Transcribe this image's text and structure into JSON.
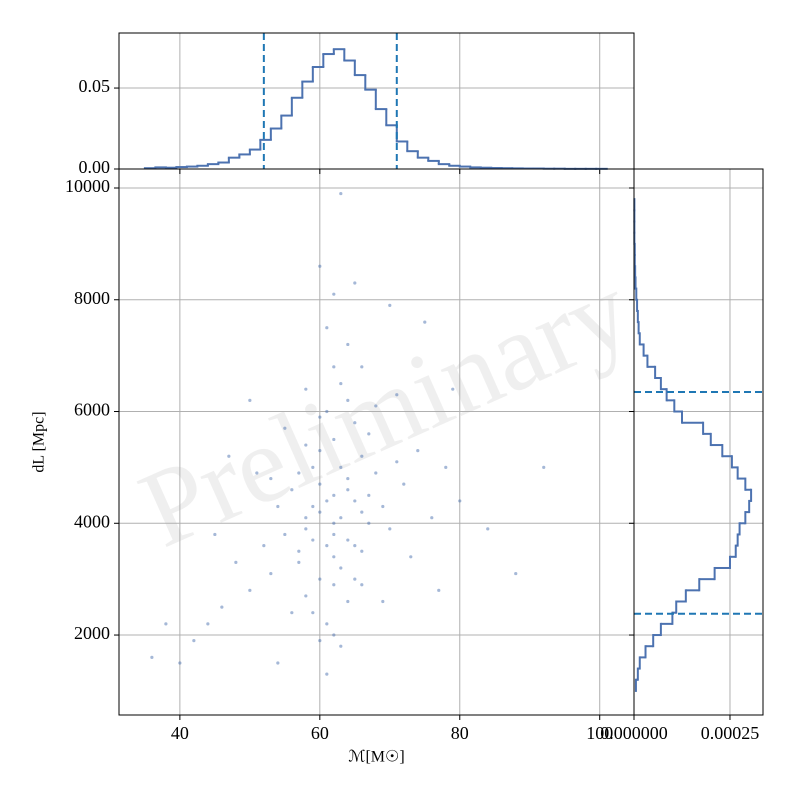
{
  "chart_data": [
    {
      "type": "scatter",
      "xlabel": "ℳ[M☉]",
      "ylabel": "dL [Mpc]",
      "watermark": "Preliminary",
      "color": "#4c72b0",
      "grid": true,
      "xlim": [
        31.3,
        104.9
      ],
      "xticks": [
        40,
        60,
        80,
        100
      ],
      "ylim": [
        569,
        10340
      ],
      "yticks": [
        2000,
        4000,
        6000,
        8000,
        10000
      ],
      "x": [
        62,
        60,
        64,
        58,
        66,
        61,
        63,
        59,
        65,
        57,
        67,
        62,
        60,
        64,
        56,
        68,
        61,
        63,
        55,
        69,
        62,
        58,
        66,
        60,
        64,
        53,
        71,
        62,
        59,
        65,
        57,
        67,
        61,
        63,
        54,
        70,
        62,
        60,
        64,
        52,
        72,
        58,
        66,
        61,
        63,
        50,
        74,
        62,
        59,
        65,
        56,
        68,
        60,
        64,
        48,
        76,
        62,
        58,
        66,
        61,
        63,
        46,
        78,
        55,
        69,
        60,
        64,
        57,
        67,
        62,
        59,
        65,
        53,
        71,
        58,
        66,
        44,
        80,
        51,
        73,
        62,
        60,
        45,
        79,
        42,
        84,
        38,
        92,
        36,
        88,
        40,
        75,
        54,
        70,
        63,
        47,
        77,
        61,
        65,
        50
      ],
      "y": [
        4500,
        4200,
        4800,
        3900,
        5200,
        3600,
        4100,
        5000,
        4400,
        3300,
        5600,
        2900,
        5300,
        3700,
        4600,
        4900,
        6000,
        3200,
        3800,
        4300,
        5500,
        2700,
        3500,
        4700,
        6200,
        3100,
        5100,
        4000,
        2400,
        5800,
        4900,
        4000,
        2200,
        6500,
        4300,
        3900,
        3400,
        5900,
        2600,
        3600,
        4700,
        5400,
        2900,
        4400,
        5000,
        2800,
        5300,
        6800,
        3700,
        3000,
        2400,
        6100,
        1900,
        7200,
        3300,
        4100,
        2000,
        6400,
        6800,
        7500,
        1800,
        2500,
        5000,
        5700,
        2600,
        3000,
        4600,
        3500,
        4500,
        3800,
        4300,
        3600,
        4800,
        6300,
        4100,
        4200,
        2200,
        4400,
        4900,
        3400,
        8100,
        8600,
        3800,
        6400,
        1900,
        3900,
        2200,
        5000,
        1600,
        3100,
        1500,
        7600,
        1500,
        7900,
        9900,
        5200,
        2800,
        1300,
        8300,
        6200
      ]
    },
    {
      "type": "histogram",
      "orientation": "vertical",
      "color": "#4c72b0",
      "line_color": "#1f77b4",
      "grid": true,
      "xtick_labels": false,
      "xlim": [
        31.3,
        104.9
      ],
      "xticks": [
        40,
        60,
        80,
        100
      ],
      "ylim": [
        0,
        0.084
      ],
      "yticks": [
        {
          "value": 0,
          "label": "0.00"
        },
        {
          "value": 0.05,
          "label": "0.05"
        }
      ],
      "bins": [
        35,
        36.5,
        38,
        39.5,
        41,
        42.5,
        44,
        45.5,
        47,
        48.5,
        50,
        51.5,
        53,
        54.5,
        56,
        57.5,
        59,
        60.5,
        62,
        63.5,
        65,
        66.5,
        68,
        69.5,
        71,
        72.5,
        74,
        75.5,
        77,
        78.5,
        80,
        81.5,
        83,
        84.5,
        86,
        87.5,
        89,
        90.5,
        92,
        93.5,
        95,
        96.5,
        98,
        99.5,
        101
      ],
      "values": [
        0.0005,
        0.001,
        0.0008,
        0.0012,
        0.0015,
        0.002,
        0.003,
        0.004,
        0.007,
        0.009,
        0.012,
        0.018,
        0.025,
        0.033,
        0.044,
        0.054,
        0.063,
        0.071,
        0.074,
        0.067,
        0.058,
        0.049,
        0.037,
        0.027,
        0.017,
        0.011,
        0.007,
        0.005,
        0.003,
        0.002,
        0.0015,
        0.001,
        0.0008,
        0.0006,
        0.0005,
        0.0004,
        0.0003,
        0.0003,
        0.0002,
        0.0002,
        0.0001,
        0.0001,
        0.0001,
        0.0001
      ],
      "lines": [
        52,
        71
      ]
    },
    {
      "type": "histogram",
      "orientation": "horizontal",
      "color": "#4c72b0",
      "line_color": "#1f77b4",
      "grid": true,
      "ytick_labels": false,
      "xlim": [
        0,
        0.000336
      ],
      "xticks": [
        {
          "value": 0,
          "label": "0.000000"
        },
        0.00025
      ],
      "ylim": [
        569,
        10340
      ],
      "yticks": [
        2000,
        4000,
        6000,
        8000,
        10000
      ],
      "bins": [
        1000,
        1200,
        1400,
        1600,
        1800,
        2000,
        2200,
        2400,
        2600,
        2800,
        3000,
        3200,
        3400,
        3600,
        3800,
        4000,
        4200,
        4400,
        4600,
        4800,
        5000,
        5200,
        5400,
        5600,
        5800,
        6000,
        6200,
        6400,
        6600,
        6800,
        7000,
        7200,
        7400,
        7600,
        7800,
        8000,
        8200,
        8400,
        8600,
        8800,
        9000,
        9200,
        9400,
        9600,
        9800
      ],
      "values": [
        5e-06,
        1e-05,
        1.5e-05,
        3e-05,
        5e-05,
        7e-05,
        0.0001,
        0.00011,
        0.000135,
        0.00017,
        0.00021,
        0.00025,
        0.000265,
        0.00027,
        0.000275,
        0.00029,
        0.0003,
        0.000305,
        0.00029,
        0.00027,
        0.000255,
        0.00023,
        0.0002,
        0.00018,
        0.000125,
        0.000105,
        8.5e-05,
        7e-05,
        5.5e-05,
        3.5e-05,
        2.5e-05,
        1.5e-05,
        1.2e-05,
        1e-05,
        8e-06,
        6e-06,
        4e-06,
        3e-06,
        2e-06,
        2e-06,
        1e-06,
        1e-06,
        1e-06,
        1e-06
      ],
      "lines": [
        2380,
        6350
      ]
    }
  ]
}
